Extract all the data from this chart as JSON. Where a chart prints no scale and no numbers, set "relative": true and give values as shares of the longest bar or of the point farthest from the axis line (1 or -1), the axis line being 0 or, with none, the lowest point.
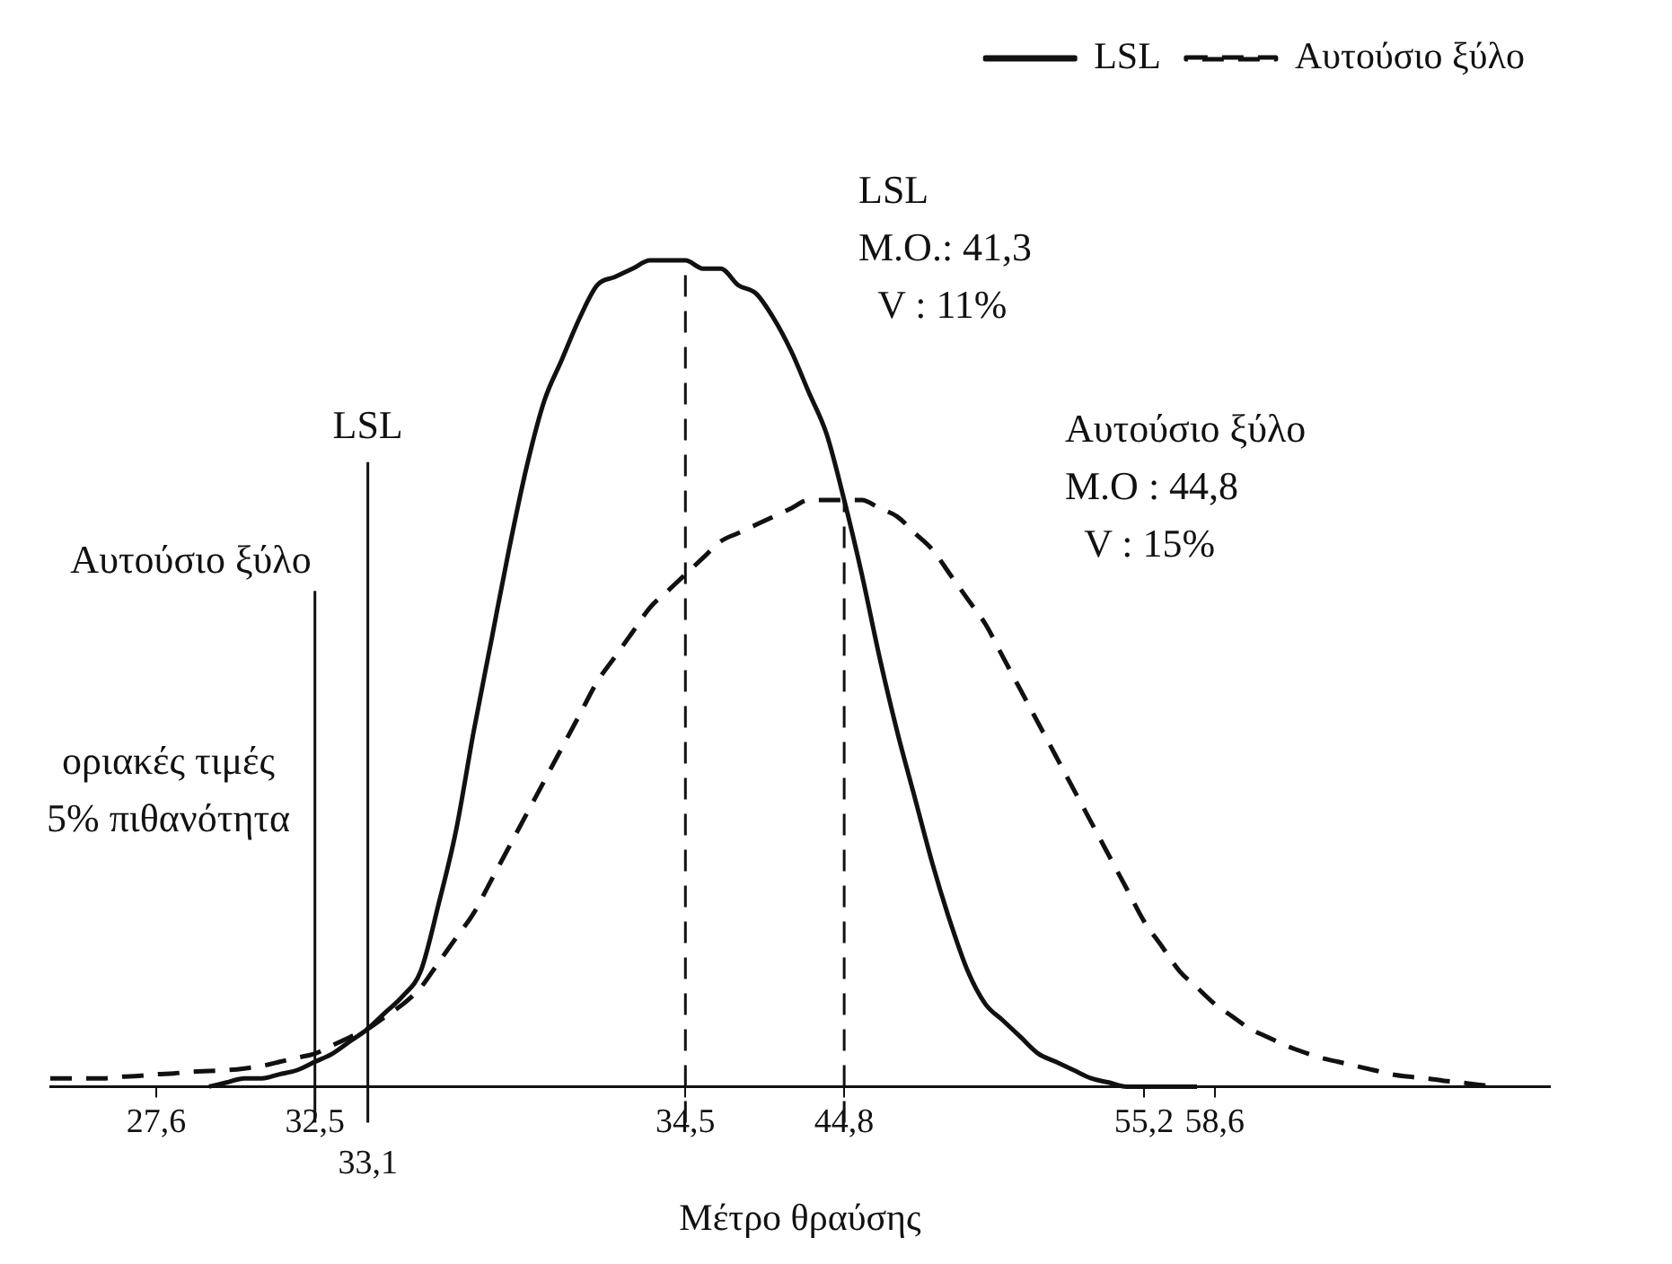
{
  "chart_data": {
    "type": "line",
    "relative": true,
    "xlabel": "Μέτρο θραύσης",
    "legend": "top right",
    "marker": "none",
    "grid": false,
    "categories": [
      null,
      null,
      null,
      null,
      null,
      null,
      "27,6",
      null,
      null,
      null,
      null,
      null,
      null,
      null,
      null,
      "32,5",
      null,
      null,
      "33,1",
      null,
      null,
      null,
      null,
      null,
      null,
      null,
      null,
      null,
      null,
      null,
      null,
      null,
      null,
      null,
      null,
      null,
      "34,5",
      null,
      null,
      null,
      null,
      null,
      null,
      null,
      null,
      "44,8",
      null,
      null,
      null,
      null,
      null,
      null,
      null,
      null,
      null,
      null,
      null,
      null,
      null,
      null,
      null,
      null,
      "55,2",
      null,
      null,
      null,
      "58,6",
      null,
      null,
      null,
      null,
      null,
      null,
      null,
      null,
      null,
      null,
      null,
      null,
      null,
      null,
      null,
      null,
      null,
      null,
      null
    ],
    "series": [
      {
        "name": "LSL",
        "color": "#111111",
        "line_style": "solid",
        "values": [
          null,
          null,
          null,
          null,
          null,
          null,
          null,
          null,
          null,
          0,
          0.005,
          0.01,
          0.01,
          0.015,
          0.02,
          0.03,
          0.04,
          0.055,
          0.07,
          0.09,
          0.11,
          0.14,
          0.22,
          0.31,
          0.43,
          0.54,
          0.65,
          0.75,
          0.83,
          0.88,
          0.93,
          0.97,
          0.98,
          0.99,
          1,
          1,
          1,
          0.99,
          0.99,
          0.97,
          0.96,
          0.93,
          0.89,
          0.84,
          0.79,
          0.71,
          0.62,
          0.52,
          0.43,
          0.35,
          0.27,
          0.2,
          0.14,
          0.1,
          0.08,
          0.06,
          0.04,
          0.03,
          0.02,
          0.01,
          0.005,
          0,
          0,
          0,
          0,
          0,
          null,
          null,
          null,
          null,
          null,
          null,
          null,
          null,
          null,
          null,
          null,
          null,
          null,
          null,
          null,
          null,
          null,
          null,
          null,
          null
        ]
      },
      {
        "name": "Αυτούσιο ξύλο",
        "color": "#111111",
        "line_style": "dashed",
        "values": [
          0.01,
          0.01,
          0.01,
          0.01,
          0.012,
          0.013,
          0.015,
          0.016,
          0.018,
          0.019,
          0.02,
          0.022,
          0.025,
          0.03,
          0.035,
          0.04,
          0.05,
          0.06,
          0.07,
          0.085,
          0.1,
          0.12,
          0.15,
          0.18,
          0.21,
          0.25,
          0.29,
          0.33,
          0.37,
          0.41,
          0.45,
          0.49,
          0.52,
          0.55,
          0.58,
          0.6,
          0.62,
          0.64,
          0.66,
          0.67,
          0.68,
          0.69,
          0.7,
          0.71,
          0.71,
          0.71,
          0.71,
          0.7,
          0.69,
          0.67,
          0.65,
          0.62,
          0.59,
          0.56,
          0.52,
          0.48,
          0.44,
          0.4,
          0.36,
          0.32,
          0.28,
          0.24,
          0.2,
          0.17,
          0.14,
          0.12,
          0.1,
          0.085,
          0.07,
          0.06,
          0.05,
          0.042,
          0.035,
          0.03,
          0.025,
          0.02,
          0.015,
          0.012,
          0.01,
          0.007,
          0.005,
          0.002,
          0,
          null,
          null,
          null
        ]
      }
    ],
    "ref_lines": [
      {
        "axis": "x",
        "value": "33,1",
        "label": "LSL",
        "line_style": "solid"
      },
      {
        "axis": "x",
        "value": "32,5",
        "label": "Αυτούσιο ξύλο",
        "line_style": "solid"
      },
      {
        "axis": "x",
        "value": "34,5",
        "label": null,
        "line_style": "dashed"
      },
      {
        "axis": "x",
        "value": "44,8",
        "label": null,
        "line_style": "dashed"
      }
    ],
    "annotations": [
      "LSL\nM.O.: 41,3\n  V : 11%",
      "Αυτούσιο ξύλο\nM.O : 44,8\n  V : 15%",
      "οριακές τιμές\n5% πιθανότητα"
    ]
  }
}
